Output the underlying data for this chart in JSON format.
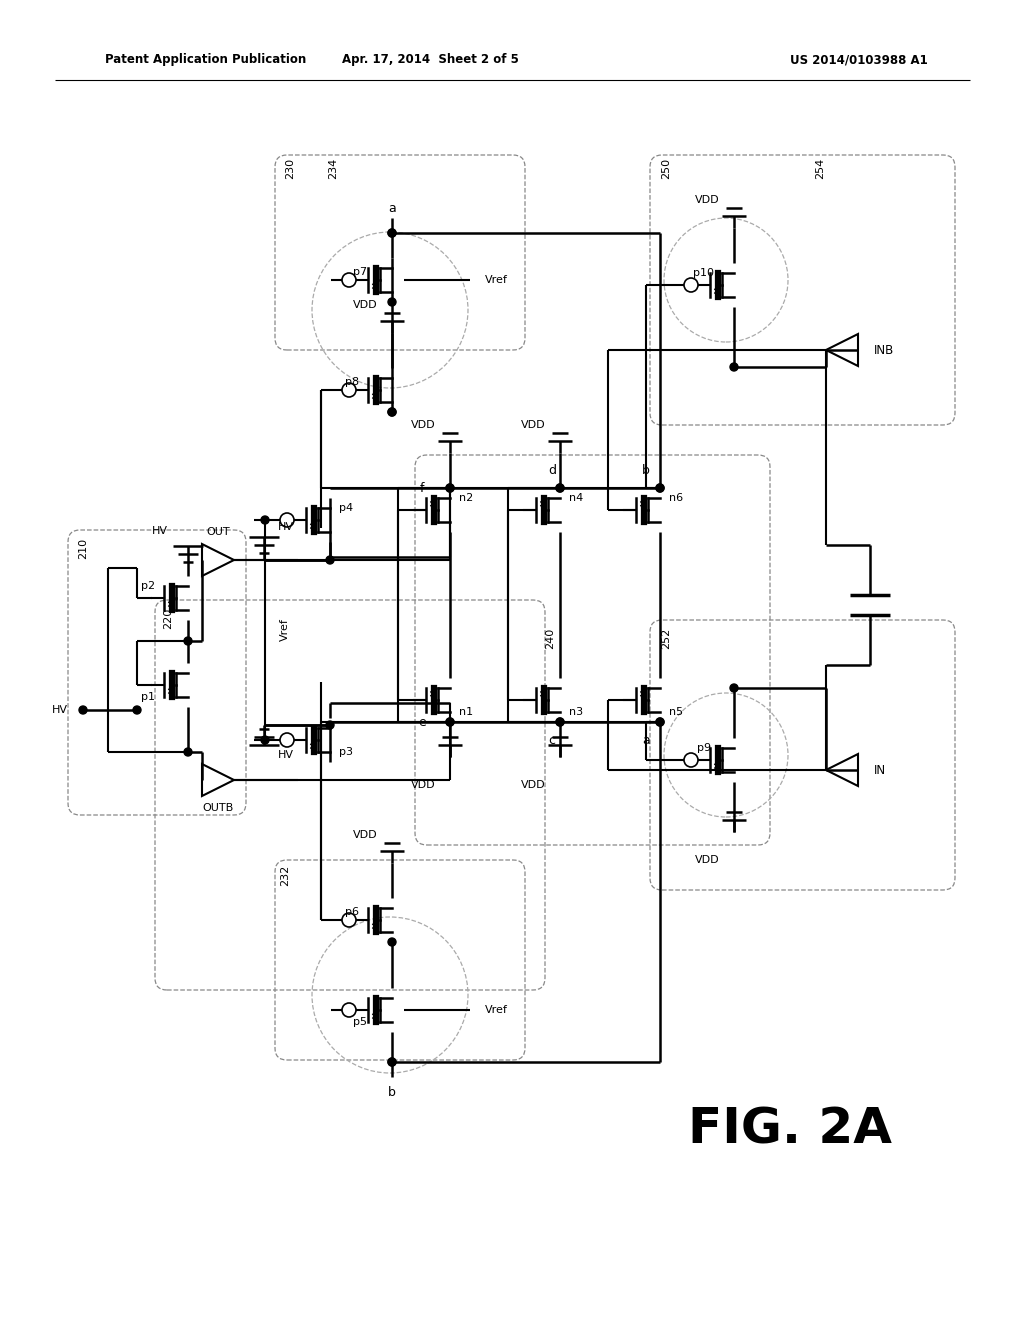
{
  "header_left": "Patent Application Publication",
  "header_mid": "Apr. 17, 2014  Sheet 2 of 5",
  "header_right": "US 2014/0103988 A1",
  "fig_label": "FIG. 2A",
  "background": "#ffffff"
}
